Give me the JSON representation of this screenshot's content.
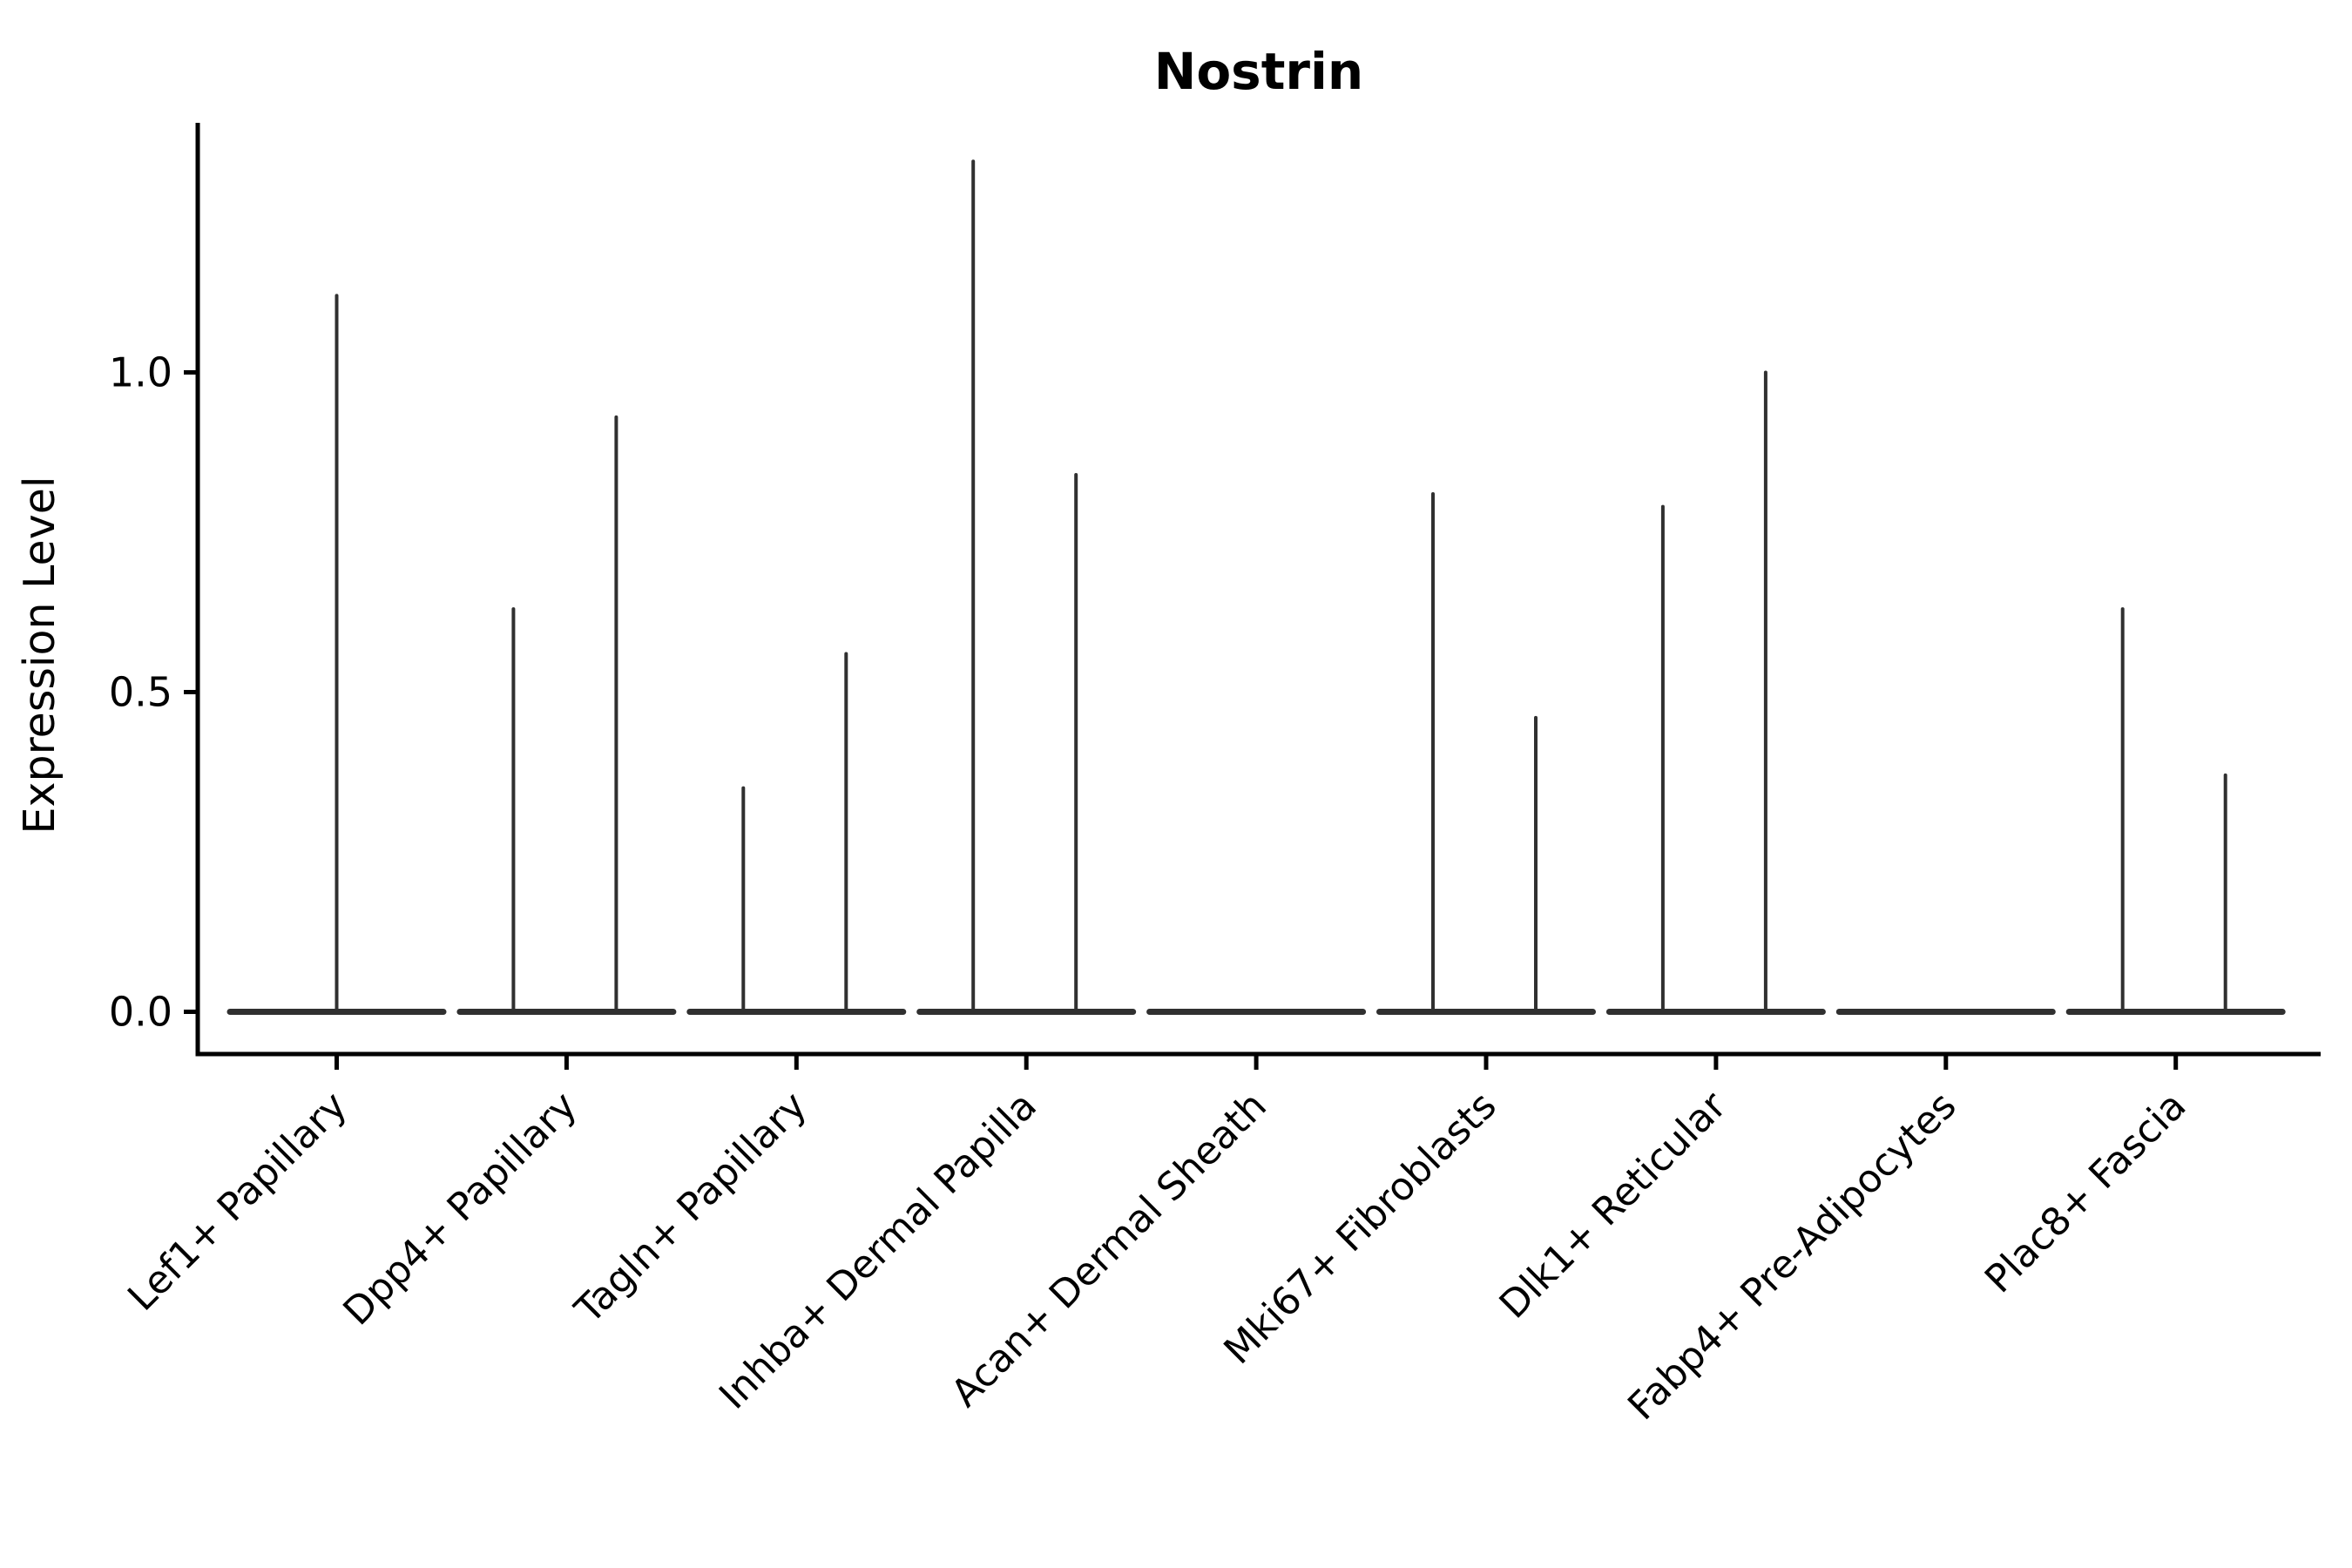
{
  "title": "Nostrin",
  "y_axis": {
    "label": "Expression Level",
    "tick_labels": [
      "0.0",
      "0.5",
      "1.0"
    ]
  },
  "chart_data": {
    "type": "violin",
    "title": "Nostrin",
    "xlabel": "",
    "ylabel": "Expression Level",
    "yticks": [
      0.0,
      0.5,
      1.0
    ],
    "ylim": [
      -0.065,
      1.39
    ],
    "grid": false,
    "legend": "none",
    "categories": [
      "Lef1+ Papillary",
      "Dpp4+ Papillary",
      "Tagln+ Papillary",
      "Inhba+ Dermal Papilla",
      "Acan+ Dermal Sheath",
      "Mki67+ Fibroblasts",
      "Dlk1+ Reticular",
      "Fabp4+ Pre-Adipocytes",
      "Plac8+ Fascia"
    ],
    "baseline_value": 0.0,
    "series": [
      {
        "category": "Lef1+ Papillary",
        "spike_maxima": [
          1.12
        ]
      },
      {
        "category": "Dpp4+ Papillary",
        "spike_maxima": [
          0.63,
          0.93
        ]
      },
      {
        "category": "Tagln+ Papillary",
        "spike_maxima": [
          0.35,
          0.56
        ]
      },
      {
        "category": "Inhba+ Dermal Papilla",
        "spike_maxima": [
          1.33,
          0.84
        ]
      },
      {
        "category": "Acan+ Dermal Sheath",
        "spike_maxima": []
      },
      {
        "category": "Mki67+ Fibroblasts",
        "spike_maxima": [
          0.81,
          0.46
        ]
      },
      {
        "category": "Dlk1+ Reticular",
        "spike_maxima": [
          0.79,
          1.0
        ]
      },
      {
        "category": "Fabp4+ Pre-Adipocytes",
        "spike_maxima": []
      },
      {
        "category": "Plac8+ Fascia",
        "spike_maxima": [
          0.63,
          0.37
        ]
      }
    ],
    "colors": {
      "violin": "#303030",
      "axis": "#000000",
      "text": "#000000",
      "background": "#ffffff"
    }
  }
}
